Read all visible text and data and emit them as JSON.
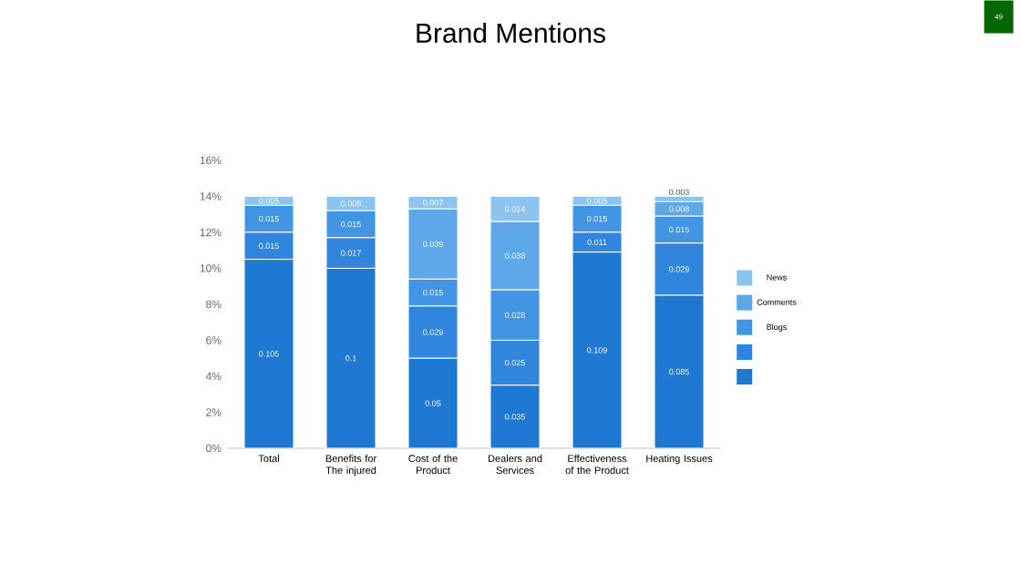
{
  "chart_data": {
    "type": "bar",
    "stacked": true,
    "title": "Brand Mentions",
    "categories": [
      "Total",
      "Benefits for The injured",
      "Cost of the Product",
      "Dealers and Services",
      "Effectiveness of the Product",
      "Heating Issues"
    ],
    "series": [
      {
        "color": "#1f78d1",
        "values": [
          0.105,
          0.1,
          0.05,
          0.035,
          0.109,
          0.085
        ],
        "value_labels": [
          "0.105",
          "0.1",
          "0.05",
          "0.035",
          "0.109",
          "0.085"
        ]
      },
      {
        "color": "#2f86dc",
        "values": [
          0.015,
          0.017,
          0.029,
          0.025,
          0.011,
          0.029
        ],
        "value_labels": [
          "0.015",
          "0.017",
          "0.029",
          "0.025",
          "0.011",
          "0.029"
        ]
      },
      {
        "name": "Blogs",
        "color": "#4295e3",
        "values": [
          0.015,
          0.015,
          0.015,
          0.028,
          0.015,
          0.015
        ],
        "value_labels": [
          "0.015",
          "0.015",
          "0.015",
          "0.028",
          "0.015",
          "0.015"
        ]
      },
      {
        "name": "Comments",
        "color": "#5ea8ea",
        "values": [
          null,
          null,
          0.039,
          0.038,
          null,
          0.008
        ],
        "value_labels": [
          null,
          null,
          "0.039",
          "0.038",
          null,
          "0.008"
        ]
      },
      {
        "name": "News",
        "color": "#8cc3ef",
        "values": [
          0.005,
          0.008,
          0.007,
          0.014,
          0.005,
          0.003
        ],
        "value_labels": [
          "0.005",
          "0.008",
          "0.007",
          "0.014",
          "0.005",
          "0.003"
        ]
      }
    ],
    "ylim": [
      0,
      0.16
    ],
    "yticks": [
      {
        "value": 0,
        "label": "0%"
      },
      {
        "value": 0.02,
        "label": "2%"
      },
      {
        "value": 0.04,
        "label": "4%"
      },
      {
        "value": 0.06,
        "label": "6%"
      },
      {
        "value": 0.08,
        "label": "8%"
      },
      {
        "value": 0.1,
        "label": "10%"
      },
      {
        "value": 0.12,
        "label": "12%"
      },
      {
        "value": 0.14,
        "label": "14%"
      },
      {
        "value": 0.16,
        "label": "16%"
      }
    ],
    "legend": "right",
    "annotations": [
      "49"
    ]
  }
}
